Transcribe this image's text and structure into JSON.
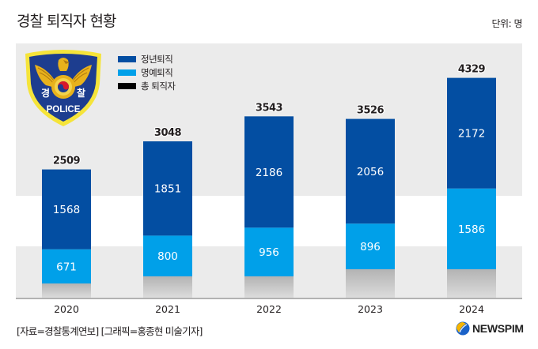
{
  "header": {
    "title": "경찰 퇴직자 현황",
    "unit": "단위: 명"
  },
  "badge": {
    "left_char": "경",
    "right_char": "찰",
    "label": "POLICE"
  },
  "footer": {
    "source": "[자료=경찰통계연보] [그래픽=홍종현 미술기자]",
    "brand": "NEWSPIM"
  },
  "colors": {
    "retirement_age": "#034ea2",
    "honorary": "#00a0e9",
    "total": "#000000",
    "band": "#ebebeb",
    "base_gradient_top": "#b3b3b3",
    "base_gradient_bottom": "#dcdcdc"
  },
  "chart_data": {
    "type": "bar",
    "stacked": true,
    "title": "경찰 퇴직자 현황",
    "unit": "단위: 명",
    "xlabel": "",
    "ylabel": "",
    "categories": [
      "2020",
      "2021",
      "2022",
      "2023",
      "2024"
    ],
    "series": [
      {
        "name": "명예퇴직",
        "color": "#00a0e9",
        "values": [
          671,
          800,
          956,
          896,
          1586
        ]
      },
      {
        "name": "정년퇴직",
        "color": "#034ea2",
        "values": [
          1568,
          1851,
          2186,
          2056,
          2172
        ]
      }
    ],
    "totals": {
      "name": "총 퇴직자",
      "color": "#000000",
      "values": [
        2509,
        3048,
        3543,
        3526,
        4329
      ]
    },
    "legend": [
      {
        "name": "정년퇴직",
        "color": "#034ea2"
      },
      {
        "name": "명예퇴직",
        "color": "#00a0e9"
      },
      {
        "name": "총 퇴직자",
        "color": "#000000"
      }
    ],
    "legend_position": "top-left",
    "grid": false,
    "ylim": [
      0,
      4500
    ]
  }
}
